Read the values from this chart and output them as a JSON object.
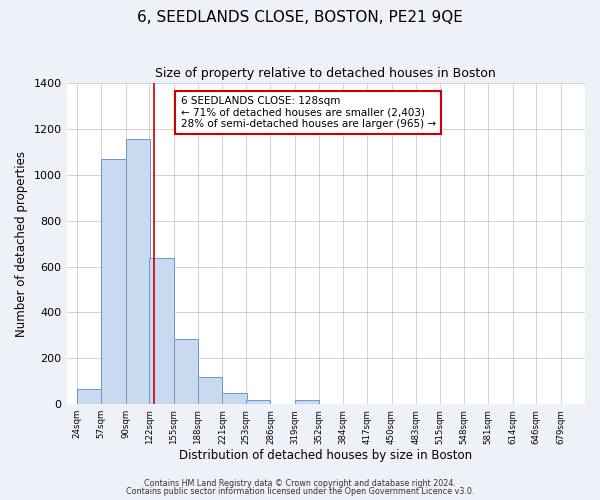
{
  "title_line1": "6, SEEDLANDS CLOSE, BOSTON, PE21 9QE",
  "title_line2": "Size of property relative to detached houses in Boston",
  "xlabel": "Distribution of detached houses by size in Boston",
  "ylabel": "Number of detached properties",
  "bar_left_edges": [
    24,
    57,
    90,
    122,
    155,
    188,
    221,
    253,
    286,
    319,
    352,
    384,
    417,
    450,
    483,
    515,
    548,
    581,
    614,
    646
  ],
  "bar_heights": [
    65,
    1070,
    1155,
    638,
    285,
    120,
    48,
    20,
    0,
    20,
    0,
    0,
    0,
    0,
    0,
    0,
    0,
    0,
    0,
    0
  ],
  "bin_width": 33,
  "bar_color": "#c9daf0",
  "bar_edgecolor": "#6699cc",
  "property_size": 128,
  "vline_color": "#cc0000",
  "annotation_title": "6 SEEDLANDS CLOSE: 128sqm",
  "annotation_line1": "← 71% of detached houses are smaller (2,403)",
  "annotation_line2": "28% of semi-detached houses are larger (965) →",
  "annotation_box_edgecolor": "#cc0000",
  "annotation_box_facecolor": "#ffffff",
  "ylim": [
    0,
    1400
  ],
  "yticks": [
    0,
    200,
    400,
    600,
    800,
    1000,
    1200,
    1400
  ],
  "x_tick_labels": [
    "24sqm",
    "57sqm",
    "90sqm",
    "122sqm",
    "155sqm",
    "188sqm",
    "221sqm",
    "253sqm",
    "286sqm",
    "319sqm",
    "352sqm",
    "384sqm",
    "417sqm",
    "450sqm",
    "483sqm",
    "515sqm",
    "548sqm",
    "581sqm",
    "614sqm",
    "646sqm",
    "679sqm"
  ],
  "x_tick_positions": [
    24,
    57,
    90,
    122,
    155,
    188,
    221,
    253,
    286,
    319,
    352,
    384,
    417,
    450,
    483,
    515,
    548,
    581,
    614,
    646,
    679
  ],
  "footer_line1": "Contains HM Land Registry data © Crown copyright and database right 2024.",
  "footer_line2": "Contains public sector information licensed under the Open Government Licence v3.0.",
  "background_color": "#eef2f8",
  "plot_background_color": "#ffffff",
  "grid_color": "#cccccc"
}
